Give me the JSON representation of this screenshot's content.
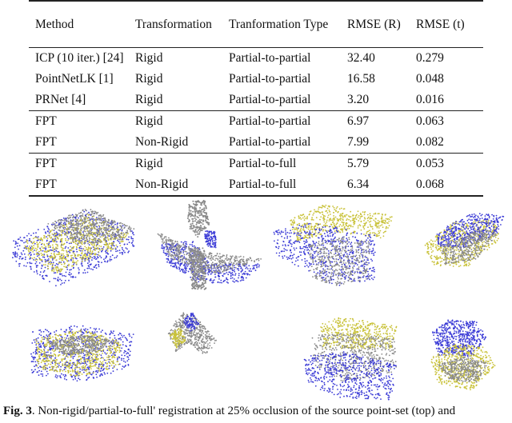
{
  "table": {
    "headers": [
      "Method",
      "Transformation",
      "Tranformation Type",
      "RMSE (R)",
      "RMSE (t)"
    ],
    "groups": [
      [
        {
          "method": "ICP (10 iter.) [24]",
          "transformation": "Rigid",
          "type": "Partial-to-partial",
          "rmse_r": "32.40",
          "rmse_t": "0.279"
        },
        {
          "method": "PointNetLK [1]",
          "transformation": "Rigid",
          "type": "Partial-to-partial",
          "rmse_r": "16.58",
          "rmse_t": "0.048"
        },
        {
          "method": "PRNet [4]",
          "transformation": "Rigid",
          "type": "Partial-to-partial",
          "rmse_r": "3.20",
          "rmse_t": "0.016"
        }
      ],
      [
        {
          "method": "FPT",
          "transformation": "Rigid",
          "type": "Partial-to-partial",
          "rmse_r": "6.97",
          "rmse_t": "0.063"
        },
        {
          "method": "FPT",
          "transformation": "Non-Rigid",
          "type": "Partial-to-partial",
          "rmse_r": "7.99",
          "rmse_t": "0.082"
        }
      ],
      [
        {
          "method": "FPT",
          "transformation": "Rigid",
          "type": "Partial-to-full",
          "rmse_r": "5.79",
          "rmse_t": "0.053"
        },
        {
          "method": "FPT",
          "transformation": "Non-Rigid",
          "type": "Partial-to-full",
          "rmse_r": "6.34",
          "rmse_t": "0.068"
        }
      ]
    ]
  },
  "figure": {
    "colors": {
      "source": "#3b3bd6",
      "target": "#c9c23a",
      "result": "#8a8a8a"
    },
    "objects_top": [
      "bed",
      "airplane",
      "chair",
      "bathtub"
    ],
    "objects_bottom": [
      "bed",
      "airplane",
      "chair",
      "bathtub"
    ]
  },
  "caption": {
    "label": "Fig. 3",
    "text": ". Non-rigid/partial-to-full' registration at 25% occlusion of the source point-set (top) and"
  }
}
